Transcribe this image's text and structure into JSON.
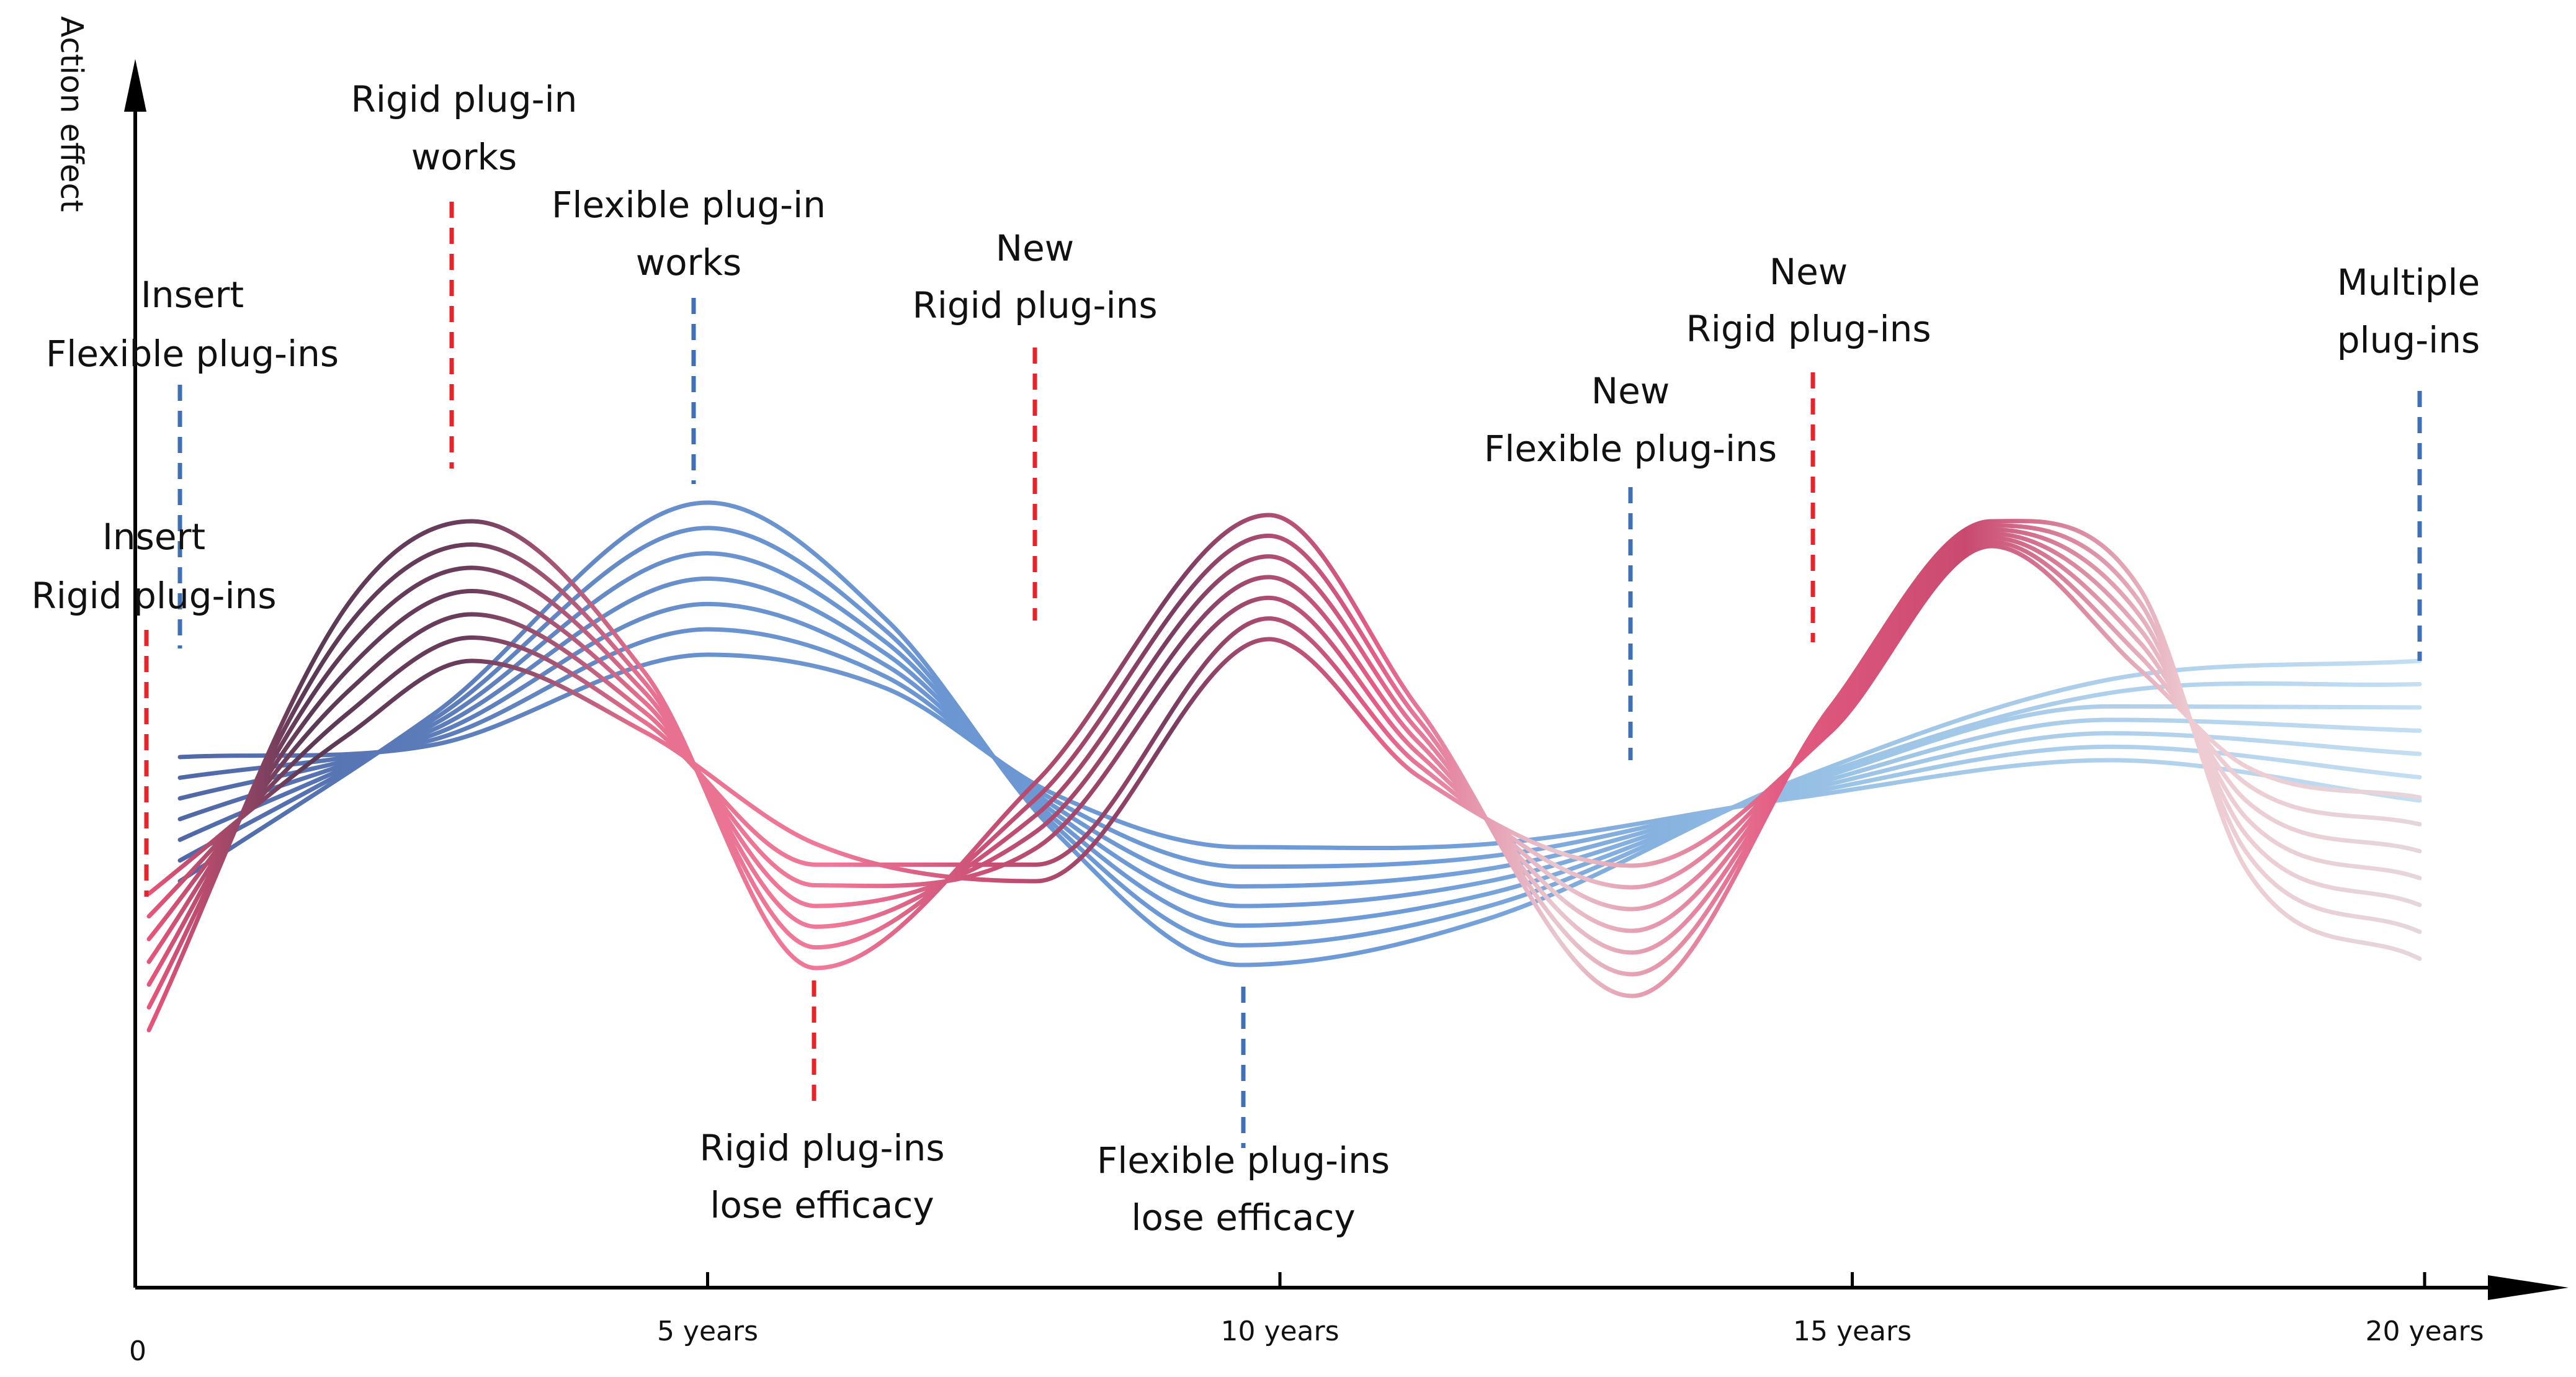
{
  "colors": {
    "rigid_marker": "#e8242b",
    "flexible_marker": "#3f6fb5",
    "axis": "#000000"
  },
  "axis": {
    "y_label": "Action effect",
    "ticks": [
      {
        "id": "t0",
        "label": "0",
        "x": 0
      },
      {
        "id": "t5",
        "label": "5 years",
        "x": 5
      },
      {
        "id": "t10",
        "label": "10 years",
        "x": 10
      },
      {
        "id": "t15",
        "label": "15 years",
        "x": 15
      },
      {
        "id": "t20",
        "label": "20 years",
        "x": 20
      }
    ]
  },
  "annotations": [
    {
      "id": "insert-rigid",
      "kind": "rigid",
      "lines": [
        "Insert",
        "Rigid plug-ins"
      ]
    },
    {
      "id": "insert-flexible",
      "kind": "flexible",
      "lines": [
        "Insert",
        "Flexible plug-ins"
      ]
    },
    {
      "id": "rigid-works",
      "kind": "rigid",
      "lines": [
        "Rigid plug-in",
        "works"
      ]
    },
    {
      "id": "flexible-works",
      "kind": "flexible",
      "lines": [
        "Flexible plug-in",
        "works"
      ]
    },
    {
      "id": "new-rigid-1",
      "kind": "rigid",
      "lines": [
        "New",
        "Rigid plug-ins"
      ]
    },
    {
      "id": "rigid-lose",
      "kind": "rigid",
      "lines": [
        "Rigid plug-ins",
        "lose efficacy"
      ]
    },
    {
      "id": "flexible-lose",
      "kind": "flexible",
      "lines": [
        "Flexible plug-ins",
        "lose efficacy"
      ]
    },
    {
      "id": "new-flexible",
      "kind": "flexible",
      "lines": [
        "New",
        "Flexible plug-ins"
      ]
    },
    {
      "id": "new-rigid-2",
      "kind": "rigid",
      "lines": [
        "New",
        "Rigid plug-ins"
      ]
    },
    {
      "id": "multiple",
      "kind": "flexible",
      "lines": [
        "Multiple",
        "plug-ins"
      ]
    }
  ]
}
